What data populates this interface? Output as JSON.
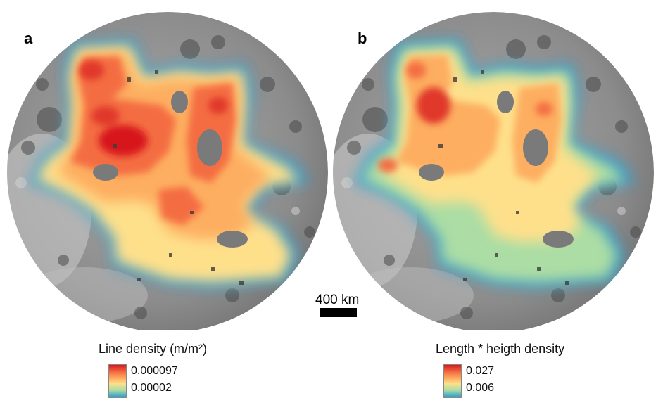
{
  "panels": [
    {
      "label": "a",
      "legend_title": "Line density (m/m²)",
      "legend_max": "0.000097",
      "legend_min": "0.00002"
    },
    {
      "label": "b",
      "legend_title": "Length * heigth density",
      "legend_max": "0.027",
      "legend_min": "0.006"
    }
  ],
  "scale_bar": {
    "label": "400 km"
  },
  "colors": {
    "ramp_high": "#d7191c",
    "ramp_mid": "#fee08b",
    "ramp_low": "#2b9bd2",
    "basemap": "#8a8a8a"
  }
}
